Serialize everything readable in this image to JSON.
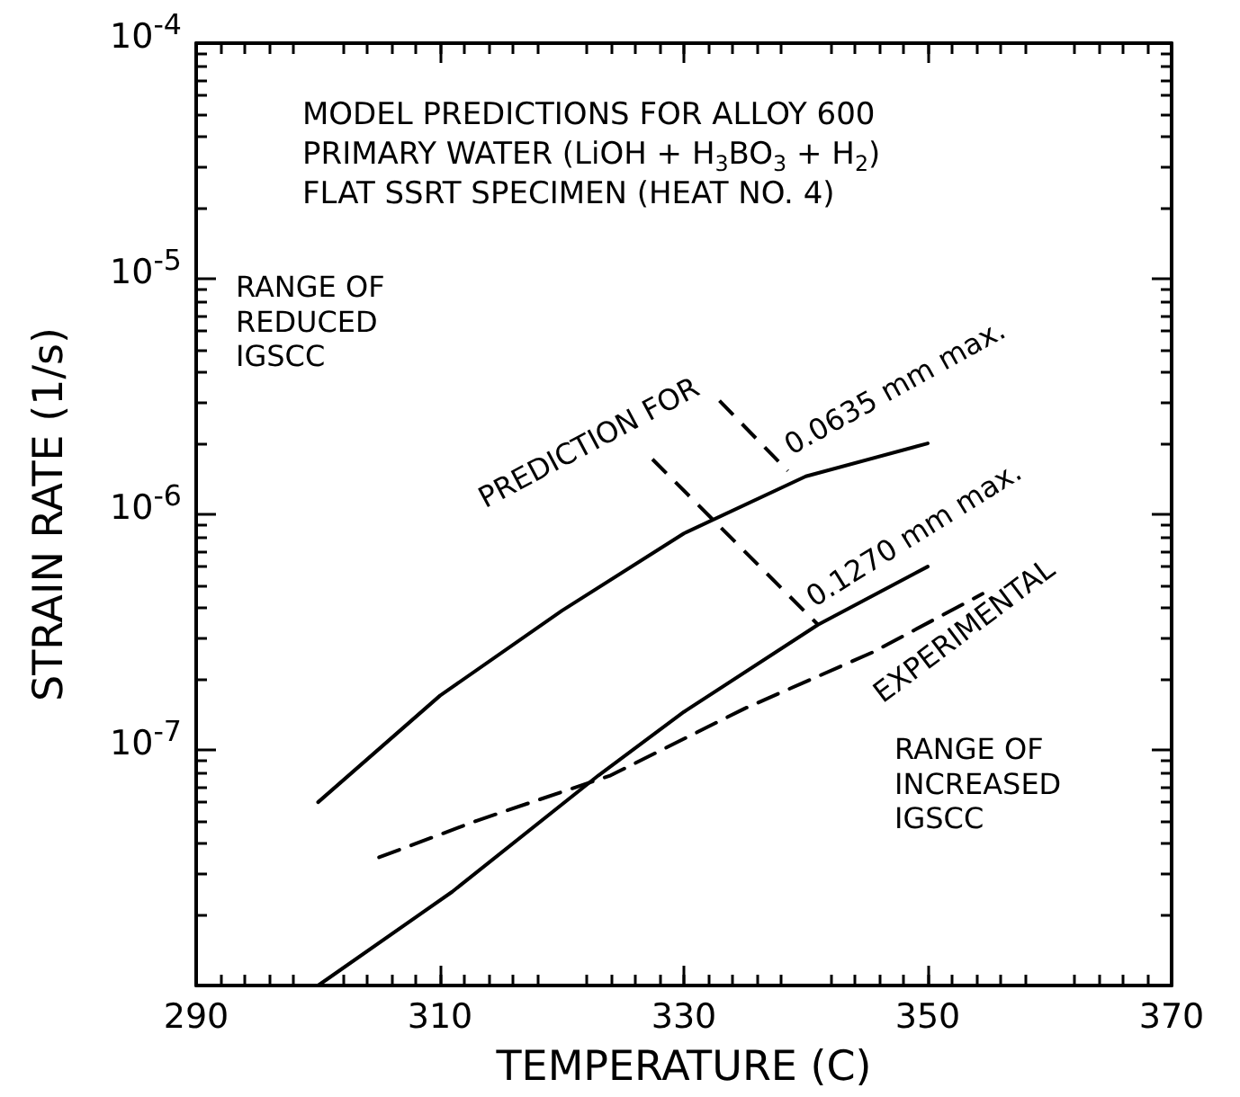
{
  "chart_data": {
    "type": "line",
    "title": "MODEL PREDICTIONS FOR ALLOY 600\nPRIMARY WATER (LiOH + H$_{3}$BO$_{3}$ + H$_{2}$)\nFLAT SSRT SPECIMEN (HEAT NO. 4)",
    "xlabel": "TEMPERATURE (C)",
    "ylabel": "STRAIN RATE (1/s)",
    "series": [
      {
        "name": "0.0635 mm max.",
        "color": "#000000",
        "line_style": "solid",
        "x": [
          300,
          310,
          320,
          330,
          340,
          350
        ],
        "values": [
          6e-08,
          1.7e-07,
          3.9e-07,
          8.3e-07,
          1.45e-06,
          2e-06
        ]
      },
      {
        "name": "0.1270 mm max.",
        "color": "#000000",
        "line_style": "solid",
        "x": [
          300,
          311,
          323,
          330,
          341,
          350
        ],
        "values": [
          1e-08,
          2.5e-08,
          7.8e-08,
          1.45e-07,
          3.4e-07,
          6e-07
        ]
      },
      {
        "name": "EXPERIMENTAL",
        "color": "#000000",
        "line_style": "dashed",
        "x": [
          305,
          313,
          324,
          335,
          345.5,
          354.5
        ],
        "values": [
          3.5e-08,
          5e-08,
          7.8e-08,
          1.5e-07,
          2.6e-07,
          4.6e-07
        ]
      }
    ],
    "annotations": [
      {
        "text": "PREDICTION FOR",
        "x": 341,
        "y": 3.4e-07
      },
      "RANGE OF\nREDUCED\nIGSCC",
      "RANGE OF\nINCREASED\nIGSCC"
    ],
    "xlim": [
      290,
      370
    ],
    "xticks": [
      290,
      310,
      330,
      350,
      370
    ],
    "ylim": [
      1e-08,
      0.0001
    ],
    "yticks": [
      {
        "value": 1e-08,
        "label": null
      },
      {
        "value": 1e-07,
        "label": "10$^{-7}$"
      },
      {
        "value": 1e-06,
        "label": "10$^{-6}$"
      },
      {
        "value": 1e-05,
        "label": "10$^{-5}$"
      },
      {
        "value": 0.0001,
        "label": "10$^{-4}$"
      }
    ],
    "log": "y",
    "grid": false,
    "legend": false,
    "marker": "none"
  }
}
